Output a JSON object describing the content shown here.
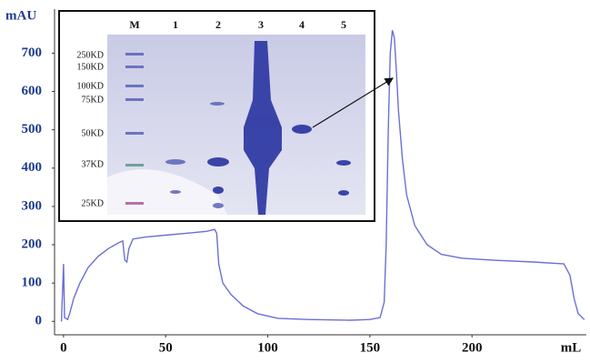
{
  "chart_data": {
    "type": "line",
    "y_label": "mAU",
    "x_label": "mL",
    "color": "#6b6fd6",
    "x": [
      -1,
      0,
      0.5,
      2,
      3,
      5,
      8,
      12,
      17,
      22,
      27,
      29,
      30,
      31,
      32,
      34,
      40,
      50,
      60,
      70,
      74,
      75,
      76,
      78,
      82,
      88,
      95,
      105,
      120,
      140,
      150,
      155,
      157,
      158,
      159,
      160,
      161,
      162,
      163,
      164,
      166,
      168,
      172,
      178,
      185,
      195,
      210,
      230,
      245,
      248,
      250,
      252,
      255
    ],
    "values": [
      0,
      150,
      10,
      5,
      20,
      60,
      100,
      140,
      170,
      190,
      205,
      210,
      160,
      155,
      190,
      215,
      220,
      225,
      230,
      235,
      240,
      230,
      150,
      100,
      70,
      40,
      20,
      8,
      5,
      3,
      5,
      10,
      50,
      200,
      500,
      700,
      760,
      740,
      650,
      550,
      420,
      330,
      250,
      200,
      175,
      165,
      160,
      155,
      150,
      120,
      60,
      20,
      5
    ],
    "xlim": [
      -4.4,
      256
    ],
    "ylim": [
      -35,
      815
    ],
    "xticks": [
      0,
      50,
      100,
      150,
      200
    ],
    "yticks": [
      0,
      100,
      200,
      300,
      400,
      500,
      600,
      700
    ],
    "inset": {
      "lanes": [
        "M",
        "1",
        "2",
        "3",
        "4",
        "5"
      ],
      "markers": [
        "250KD",
        "150KD",
        "100KD",
        "75KD",
        "50KD",
        "37KD",
        "25KD"
      ]
    }
  }
}
